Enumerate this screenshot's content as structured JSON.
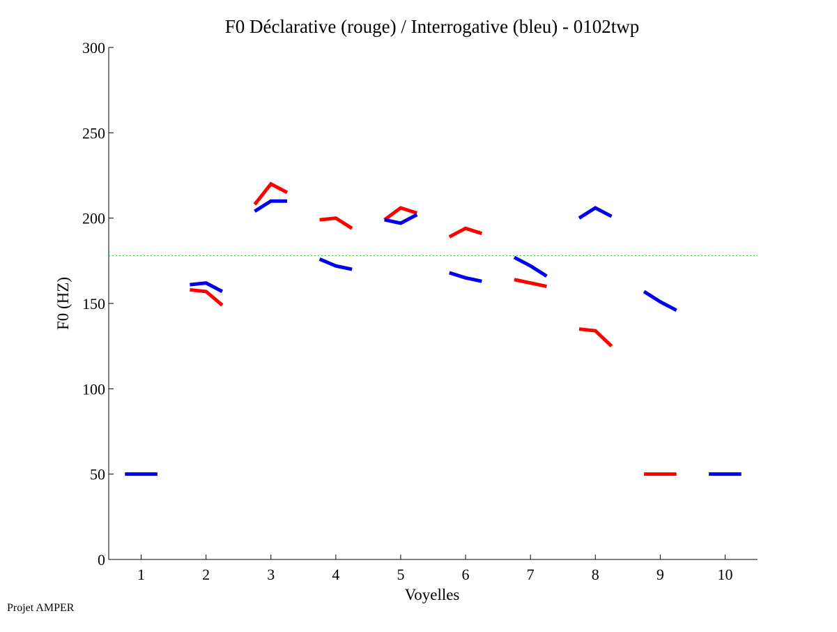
{
  "chart_data": {
    "type": "line",
    "title": "F0 Déclarative (rouge) / Interrogative (bleu) - 0102twp",
    "xlabel": "Voyelles",
    "ylabel": "F0 (HZ)",
    "xlim": [
      0.5,
      10.5
    ],
    "ylim": [
      0,
      300
    ],
    "x_ticks": [
      1,
      2,
      3,
      4,
      5,
      6,
      7,
      8,
      9,
      10
    ],
    "x_tick_labels": [
      "1",
      "2",
      "3",
      "4",
      "5",
      "6",
      "7",
      "8",
      "9",
      "10"
    ],
    "y_ticks": [
      0,
      50,
      100,
      150,
      200,
      250,
      300
    ],
    "y_tick_labels": [
      "0",
      "50",
      "100",
      "150",
      "200",
      "250",
      "300"
    ],
    "grid": false,
    "reference_line": {
      "y": 178,
      "color": "#33cc33",
      "style": "dotted"
    },
    "series": [
      {
        "name": "Déclarative",
        "color": "#ff0000",
        "segments": [
          {
            "vowel": 2,
            "points": [
              [
                1.75,
                158
              ],
              [
                2.0,
                157
              ],
              [
                2.25,
                149
              ]
            ]
          },
          {
            "vowel": 3,
            "points": [
              [
                2.75,
                208
              ],
              [
                3.0,
                220
              ],
              [
                3.25,
                215
              ]
            ]
          },
          {
            "vowel": 4,
            "points": [
              [
                3.75,
                199
              ],
              [
                4.0,
                200
              ],
              [
                4.25,
                194
              ]
            ]
          },
          {
            "vowel": 5,
            "points": [
              [
                4.75,
                199
              ],
              [
                5.0,
                206
              ],
              [
                5.25,
                203
              ]
            ]
          },
          {
            "vowel": 6,
            "points": [
              [
                5.75,
                189
              ],
              [
                6.0,
                194
              ],
              [
                6.25,
                191
              ]
            ]
          },
          {
            "vowel": 7,
            "points": [
              [
                6.75,
                164
              ],
              [
                7.0,
                162
              ],
              [
                7.25,
                160
              ]
            ]
          },
          {
            "vowel": 8,
            "points": [
              [
                7.75,
                135
              ],
              [
                8.0,
                134
              ],
              [
                8.25,
                125
              ]
            ]
          },
          {
            "vowel": 9,
            "points": [
              [
                8.75,
                50
              ],
              [
                9.0,
                50
              ],
              [
                9.25,
                50
              ]
            ]
          }
        ]
      },
      {
        "name": "Interrogative",
        "color": "#0000ee",
        "segments": [
          {
            "vowel": 1,
            "points": [
              [
                0.75,
                50
              ],
              [
                1.0,
                50
              ],
              [
                1.25,
                50
              ]
            ]
          },
          {
            "vowel": 2,
            "points": [
              [
                1.75,
                161
              ],
              [
                2.0,
                162
              ],
              [
                2.25,
                157
              ]
            ]
          },
          {
            "vowel": 3,
            "points": [
              [
                2.75,
                204
              ],
              [
                3.0,
                210
              ],
              [
                3.25,
                210
              ]
            ]
          },
          {
            "vowel": 4,
            "points": [
              [
                3.75,
                176
              ],
              [
                4.0,
                172
              ],
              [
                4.25,
                170
              ]
            ]
          },
          {
            "vowel": 5,
            "points": [
              [
                4.75,
                199
              ],
              [
                5.0,
                197
              ],
              [
                5.25,
                202
              ]
            ]
          },
          {
            "vowel": 6,
            "points": [
              [
                5.75,
                168
              ],
              [
                6.0,
                165
              ],
              [
                6.25,
                163
              ]
            ]
          },
          {
            "vowel": 7,
            "points": [
              [
                6.75,
                177
              ],
              [
                7.0,
                172
              ],
              [
                7.25,
                166
              ]
            ]
          },
          {
            "vowel": 8,
            "points": [
              [
                7.75,
                200
              ],
              [
                8.0,
                206
              ],
              [
                8.25,
                201
              ]
            ]
          },
          {
            "vowel": 9,
            "points": [
              [
                8.75,
                157
              ],
              [
                9.0,
                151
              ],
              [
                9.25,
                146
              ]
            ]
          },
          {
            "vowel": 10,
            "points": [
              [
                9.75,
                50
              ],
              [
                10.0,
                50
              ],
              [
                10.25,
                50
              ]
            ]
          }
        ]
      }
    ]
  },
  "footer": {
    "label": "Projet AMPER"
  }
}
